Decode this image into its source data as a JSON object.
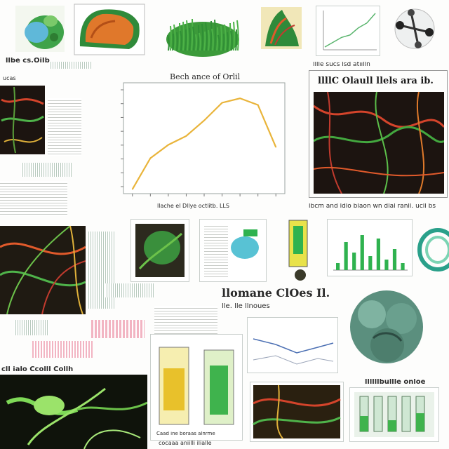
{
  "captions": {
    "top_left": "llbe cs.OiIb",
    "left_small": "ucas",
    "center_chart_title": "Bech ance of Orlil",
    "center_chart_xlabel": "llache el Dllye octlitb. LLS",
    "right_header": "lllle sucs lsd atiilln",
    "right_title": "llllC Olaull llels ara ib.",
    "right_photo_caption": "lbcm and ldlo blaon wn dlal ranll. ucll bs",
    "mid_title": "llomane ClOes Il.",
    "mid_sub": "lle. lle llnoues",
    "bottom_left_label": "cll ialo Ccolll Collh",
    "bottom_right_label": "llllllbullle onloe",
    "bottom_center_caption": "Caad ine boraas alnrme",
    "bottom_strip_caption": "cocaaa aniilli ilialle"
  },
  "chart_data": {
    "type": "line",
    "title": "Bech ance of Orlil",
    "xlabel": "llache el Dllye octlitb. LLS",
    "ylabel": "",
    "x": [
      1,
      2,
      3,
      4,
      5,
      6,
      7,
      8,
      9
    ],
    "y": [
      2,
      16,
      22,
      26,
      33,
      41,
      43,
      40,
      21
    ],
    "xlim": [
      0.5,
      9.5
    ],
    "ylim": [
      0,
      50
    ],
    "y_ticks": [
      "",
      "",
      "",
      "",
      "",
      "",
      "",
      ""
    ],
    "x_ticks": [
      "",
      "",
      "",
      "",
      "",
      "",
      "",
      "",
      ""
    ],
    "color": "#e9b43a",
    "grid": false
  },
  "bar_chart": {
    "values": [
      2,
      8,
      5,
      10,
      4,
      9,
      3,
      6,
      2
    ],
    "color": "#2fb24f"
  },
  "mini_line": {
    "values": [
      1,
      2,
      3,
      3.5,
      5,
      6,
      8
    ],
    "color": "#58b46c"
  },
  "colors": {
    "accent": "#e9b43a",
    "green": "#2fb24f",
    "dark_bg": "#1c1410"
  }
}
